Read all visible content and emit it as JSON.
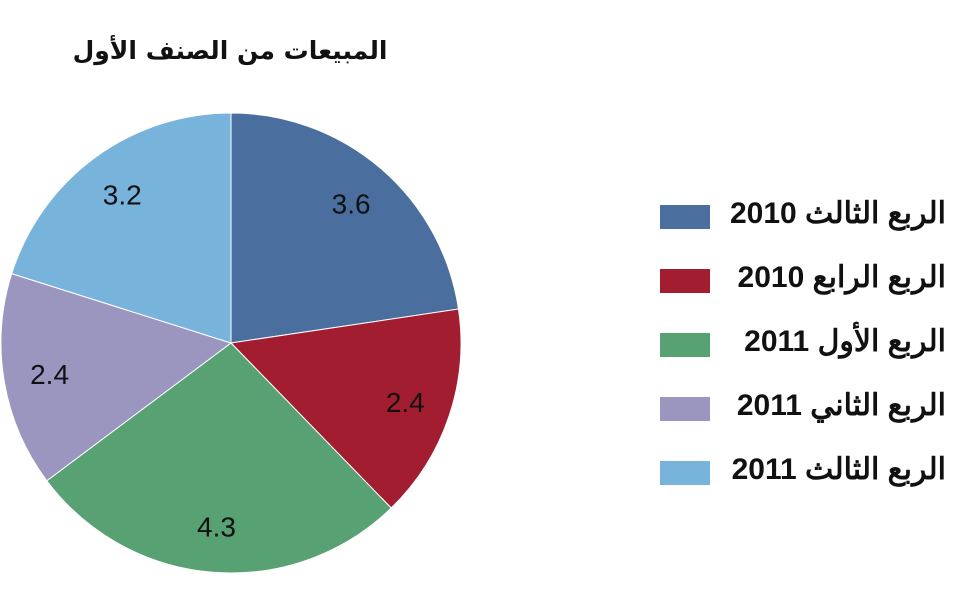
{
  "chart_data": {
    "type": "pie",
    "title": "المبيعات من الصنف الأول",
    "slices": [
      {
        "label": "الربع الثالث 2010",
        "value": 3.6,
        "color": "#4a6f9e"
      },
      {
        "label": "الربع الرابع 2010",
        "value": 2.4,
        "color": "#a11d2f"
      },
      {
        "label": "الربع الأول 2011",
        "value": 4.3,
        "color": "#57a173"
      },
      {
        "label": "الربع الثاني 2011",
        "value": 2.4,
        "color": "#9b96bf"
      },
      {
        "label": "الربع الثالث 2011",
        "value": 3.2,
        "color": "#78b3dc"
      }
    ],
    "legend_position": "right",
    "start_angle": "top",
    "direction": "clockwise"
  }
}
